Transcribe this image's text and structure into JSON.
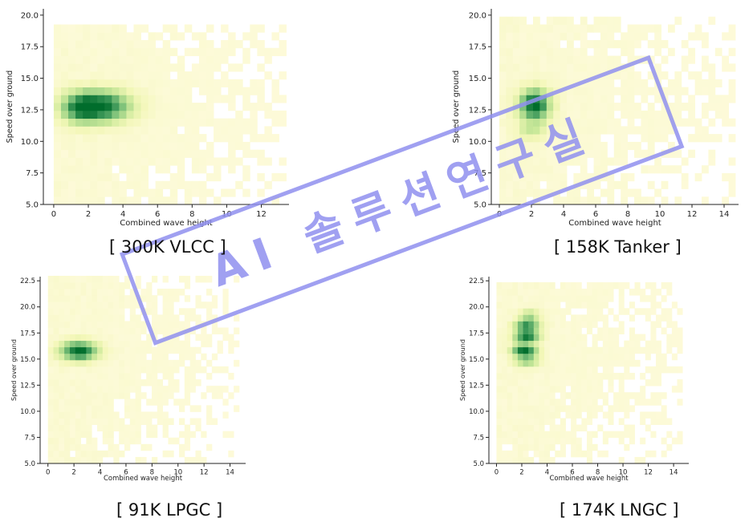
{
  "chart_data": [
    {
      "type": "heatmap",
      "caption": "[ 300K VLCC ]",
      "xlabel": "Combined wave height",
      "ylabel": "Speed over ground",
      "xlim": [
        -0.6,
        13.6
      ],
      "ylim": [
        5.0,
        20.5
      ],
      "xticks": [
        "0",
        "2",
        "4",
        "6",
        "8",
        "10",
        "12"
      ],
      "xtick_values": [
        0,
        2,
        4,
        6,
        8,
        10,
        12
      ],
      "yticks": [
        "5.0",
        "7.5",
        "10.0",
        "12.5",
        "15.0",
        "17.5",
        "20.0"
      ],
      "ytick_values": [
        5.0,
        7.5,
        10.0,
        12.5,
        15.0,
        17.5,
        20.0
      ],
      "grid": false,
      "colormap": [
        "#fffbe0",
        "#f3f7b8",
        "#c9e899",
        "#86c67e",
        "#3f9a5a",
        "#006d2c"
      ],
      "x_extent": [
        0,
        13.2
      ],
      "y_extent": [
        5.0,
        19.2
      ],
      "peaks": [
        {
          "x": 2.6,
          "y": 12.8,
          "sx": 1.3,
          "sy": 0.9,
          "w": 1.0
        },
        {
          "x": 1.4,
          "y": 12.6,
          "sx": 0.7,
          "sy": 0.8,
          "w": 0.35
        }
      ]
    },
    {
      "type": "heatmap",
      "caption": "[ 158K Tanker ]",
      "xlabel": "Combined wave height",
      "ylabel": "Speed over ground",
      "xlim": [
        -0.5,
        14.9
      ],
      "ylim": [
        5.0,
        20.5
      ],
      "xticks": [
        "0",
        "2",
        "4",
        "6",
        "8",
        "10",
        "12",
        "14"
      ],
      "xtick_values": [
        0,
        2,
        4,
        6,
        8,
        10,
        12,
        14
      ],
      "yticks": [
        "5.0",
        "7.5",
        "10.0",
        "12.5",
        "15.0",
        "17.5",
        "20.0"
      ],
      "ytick_values": [
        5.0,
        7.5,
        10.0,
        12.5,
        15.0,
        17.5,
        20.0
      ],
      "grid": false,
      "colormap": [
        "#fffbe0",
        "#f3f7b8",
        "#c9e899",
        "#86c67e",
        "#3f9a5a",
        "#006d2c"
      ],
      "x_extent": [
        0,
        14.3
      ],
      "y_extent": [
        5.0,
        19.3
      ],
      "peaks": [
        {
          "x": 2.2,
          "y": 12.9,
          "sx": 0.7,
          "sy": 0.9,
          "w": 1.0
        },
        {
          "x": 2.0,
          "y": 10.8,
          "sx": 0.6,
          "sy": 0.5,
          "w": 0.3
        }
      ]
    },
    {
      "type": "heatmap",
      "caption": "[ 91K LPGC ]",
      "xlabel": "Combined wave height",
      "ylabel": "Speed over ground",
      "xlim": [
        -0.6,
        15.2
      ],
      "ylim": [
        5.0,
        22.9
      ],
      "xticks": [
        "0",
        "2",
        "4",
        "6",
        "8",
        "10",
        "12",
        "14"
      ],
      "xtick_values": [
        0,
        2,
        4,
        6,
        8,
        10,
        12,
        14
      ],
      "yticks": [
        "5.0",
        "7.5",
        "10.0",
        "12.5",
        "15.0",
        "17.5",
        "20.0",
        "22.5"
      ],
      "ytick_values": [
        5.0,
        7.5,
        10.0,
        12.5,
        15.0,
        17.5,
        20.0,
        22.5
      ],
      "grid": false,
      "colormap": [
        "#fffbe0",
        "#f3f7b8",
        "#c9e899",
        "#86c67e",
        "#3f9a5a",
        "#006d2c"
      ],
      "x_extent": [
        0,
        14.3
      ],
      "y_extent": [
        5.0,
        22.4
      ],
      "peaks": [
        {
          "x": 2.4,
          "y": 15.8,
          "sx": 1.0,
          "sy": 0.65,
          "w": 1.0
        }
      ]
    },
    {
      "type": "heatmap",
      "caption": "[ 174K LNGC ]",
      "xlabel": "Combined wave height",
      "ylabel": "Speed over ground",
      "xlim": [
        -0.6,
        15.2
      ],
      "ylim": [
        5.0,
        22.9
      ],
      "xticks": [
        "0",
        "2",
        "4",
        "6",
        "8",
        "10",
        "12",
        "14"
      ],
      "xtick_values": [
        0,
        2,
        4,
        6,
        8,
        10,
        12,
        14
      ],
      "yticks": [
        "5.0",
        "7.5",
        "10.0",
        "12.5",
        "15.0",
        "17.5",
        "20.0",
        "22.5"
      ],
      "ytick_values": [
        5.0,
        7.5,
        10.0,
        12.5,
        15.0,
        17.5,
        20.0,
        22.5
      ],
      "grid": false,
      "colormap": [
        "#fffbe0",
        "#f3f7b8",
        "#c9e899",
        "#86c67e",
        "#3f9a5a",
        "#006d2c"
      ],
      "x_extent": [
        0,
        14.6
      ],
      "y_extent": [
        5.0,
        22.3
      ],
      "peaks": [
        {
          "x": 2.2,
          "y": 15.9,
          "sx": 0.7,
          "sy": 0.4,
          "w": 0.95
        },
        {
          "x": 2.4,
          "y": 17.2,
          "sx": 0.7,
          "sy": 0.4,
          "w": 0.9
        },
        {
          "x": 2.4,
          "y": 18.2,
          "sx": 0.7,
          "sy": 0.4,
          "w": 0.75
        },
        {
          "x": 2.4,
          "y": 14.9,
          "sx": 0.7,
          "sy": 0.4,
          "w": 0.55
        },
        {
          "x": 2.6,
          "y": 19.2,
          "sx": 0.6,
          "sy": 0.4,
          "w": 0.45
        }
      ]
    }
  ],
  "watermark": {
    "text": "AI 솔루션연구실",
    "color": "#8f8fee"
  }
}
